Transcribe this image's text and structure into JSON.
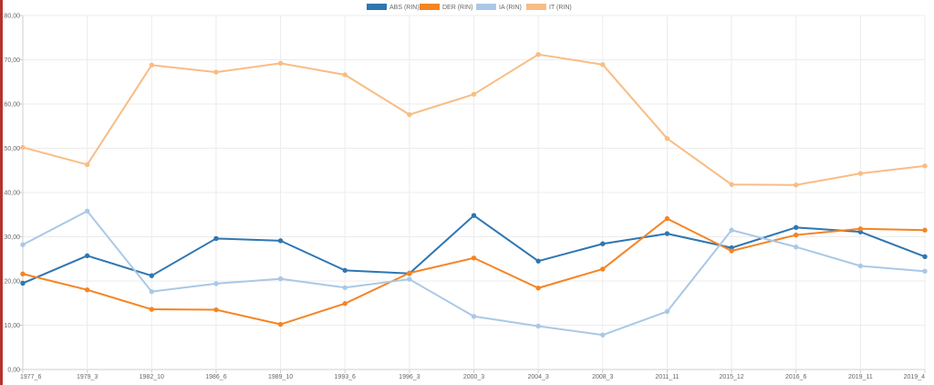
{
  "chart_data": {
    "type": "line",
    "title": "",
    "xlabel": "",
    "ylabel": "",
    "categories": [
      "1977_6",
      "1979_3",
      "1982_10",
      "1986_6",
      "1989_10",
      "1993_6",
      "1996_3",
      "2000_3",
      "2004_3",
      "2008_3",
      "2011_11",
      "2015_12",
      "2016_6",
      "2019_11",
      "2019_4"
    ],
    "ylim": [
      0,
      80
    ],
    "y_ticks": [
      "0,00",
      "10,00",
      "20,00",
      "30,00",
      "40,00",
      "50,00",
      "60,00",
      "70,00",
      "80,00"
    ],
    "grid": true,
    "legend_position": "top-center",
    "series": [
      {
        "name": "ABS (RIN)",
        "color": "#2f76b1",
        "values": [
          19.5,
          25.7,
          21.2,
          29.6,
          29.1,
          22.4,
          21.7,
          34.8,
          24.5,
          28.4,
          30.7,
          27.5,
          32.1,
          31.1,
          25.5
        ]
      },
      {
        "name": "DER (RIN)",
        "color": "#f58423",
        "values": [
          21.6,
          18.0,
          13.6,
          13.5,
          10.2,
          14.9,
          21.8,
          25.2,
          18.4,
          22.7,
          34.1,
          26.8,
          30.4,
          31.8,
          31.5
        ]
      },
      {
        "name": "IA (RIN)",
        "color": "#aac8e6",
        "values": [
          28.2,
          35.8,
          17.6,
          19.4,
          20.5,
          18.5,
          20.4,
          12.0,
          9.8,
          7.8,
          13.1,
          31.5,
          27.7,
          23.4,
          22.2
        ]
      },
      {
        "name": "IT (RIN)",
        "color": "#f8bd84",
        "values": [
          50.2,
          46.3,
          68.8,
          67.2,
          69.2,
          66.6,
          57.6,
          62.2,
          71.2,
          68.9,
          52.2,
          41.8,
          41.7,
          44.3,
          46.0
        ]
      }
    ]
  }
}
